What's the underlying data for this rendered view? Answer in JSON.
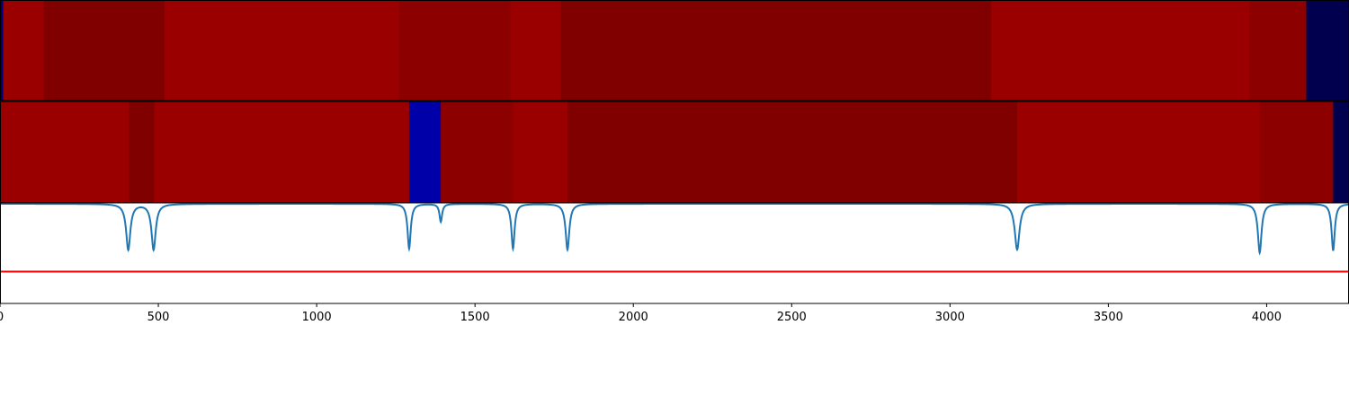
{
  "chart_data": [
    {
      "type": "heatmap",
      "panel": "top",
      "segments": [
        {
          "start": 0,
          "end": 10,
          "color": "#00007f"
        },
        {
          "start": 10,
          "end": 138,
          "color": "#9b0000"
        },
        {
          "start": 138,
          "end": 519,
          "color": "#800000"
        },
        {
          "start": 519,
          "end": 1261,
          "color": "#9b0000"
        },
        {
          "start": 1261,
          "end": 1612,
          "color": "#8d0000"
        },
        {
          "start": 1612,
          "end": 1771,
          "color": "#9b0000"
        },
        {
          "start": 1771,
          "end": 3130,
          "color": "#800000"
        },
        {
          "start": 3130,
          "end": 3945,
          "color": "#9b0000"
        },
        {
          "start": 3945,
          "end": 4125,
          "color": "#8d0000"
        },
        {
          "start": 4125,
          "end": 4260,
          "color": "#00004f"
        }
      ]
    },
    {
      "type": "heatmap",
      "panel": "middle",
      "segments": [
        {
          "start": 0,
          "end": 407,
          "color": "#9b0000"
        },
        {
          "start": 407,
          "end": 487,
          "color": "#800000"
        },
        {
          "start": 487,
          "end": 1292,
          "color": "#9b0000"
        },
        {
          "start": 1292,
          "end": 1392,
          "color": "#0000a8"
        },
        {
          "start": 1392,
          "end": 1620,
          "color": "#8d0000"
        },
        {
          "start": 1620,
          "end": 1792,
          "color": "#9b0000"
        },
        {
          "start": 1792,
          "end": 3212,
          "color": "#800000"
        },
        {
          "start": 3212,
          "end": 3978,
          "color": "#9b0000"
        },
        {
          "start": 3978,
          "end": 4210,
          "color": "#8d0000"
        },
        {
          "start": 4210,
          "end": 4260,
          "color": "#00004f"
        }
      ]
    },
    {
      "type": "line",
      "panel": "bottom",
      "xlim": [
        0,
        4260
      ],
      "x_ticks": [
        0,
        500,
        1000,
        1500,
        2000,
        2500,
        3000,
        3500,
        4000
      ],
      "x_tick_labels": [
        "0",
        "500",
        "1000",
        "1500",
        "2000",
        "2500",
        "3000",
        "3500",
        "4000"
      ],
      "series": [
        {
          "color": "#1f77b4",
          "dips": [
            {
              "x": 405,
              "depth": 0.46,
              "width": 8
            },
            {
              "x": 485,
              "depth": 0.46,
              "width": 8
            },
            {
              "x": 1292,
              "depth": 0.45,
              "width": 6
            },
            {
              "x": 1392,
              "depth": 0.18,
              "width": 5
            },
            {
              "x": 1620,
              "depth": 0.45,
              "width": 6
            },
            {
              "x": 1792,
              "depth": 0.46,
              "width": 7
            },
            {
              "x": 3212,
              "depth": 0.46,
              "width": 9
            },
            {
              "x": 3978,
              "depth": 0.49,
              "width": 7
            },
            {
              "x": 4210,
              "depth": 0.47,
              "width": 6
            }
          ]
        },
        {
          "type": "hline",
          "color": "#ff0000",
          "y": 0.68
        }
      ]
    }
  ]
}
